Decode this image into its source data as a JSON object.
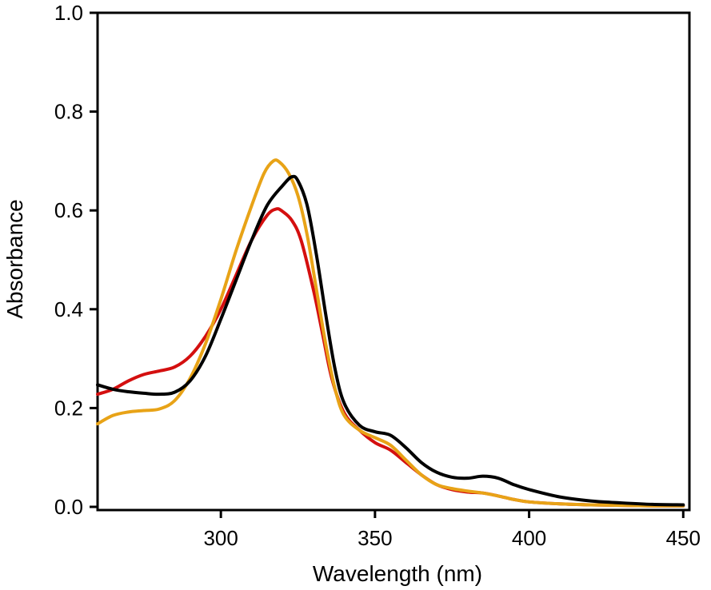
{
  "chart_data": {
    "type": "line",
    "title": "",
    "xlabel": "Wavelength (nm)",
    "ylabel": "Absorbance",
    "xlim": [
      260,
      452
    ],
    "ylim": [
      0,
      1.0
    ],
    "x_ticks": [
      300,
      350,
      400,
      450
    ],
    "x_tick_labels": [
      "300",
      "350",
      "400",
      "450"
    ],
    "y_ticks": [
      0.0,
      0.2,
      0.4,
      0.6,
      0.8,
      1.0
    ],
    "y_tick_labels": [
      "0.0",
      "0.2",
      "0.4",
      "0.6",
      "0.8",
      "1.0"
    ],
    "grid": false,
    "legend": "none",
    "series": [
      {
        "color": "#d40f0f",
        "points": [
          [
            260,
            0.228
          ],
          [
            265,
            0.238
          ],
          [
            270,
            0.255
          ],
          [
            275,
            0.268
          ],
          [
            280,
            0.275
          ],
          [
            285,
            0.283
          ],
          [
            290,
            0.305
          ],
          [
            295,
            0.345
          ],
          [
            300,
            0.4
          ],
          [
            305,
            0.47
          ],
          [
            310,
            0.54
          ],
          [
            315,
            0.59
          ],
          [
            318,
            0.603
          ],
          [
            320,
            0.598
          ],
          [
            323,
            0.58
          ],
          [
            326,
            0.54
          ],
          [
            330,
            0.44
          ],
          [
            333,
            0.35
          ],
          [
            336,
            0.26
          ],
          [
            340,
            0.19
          ],
          [
            345,
            0.155
          ],
          [
            350,
            0.13
          ],
          [
            355,
            0.115
          ],
          [
            360,
            0.09
          ],
          [
            365,
            0.065
          ],
          [
            370,
            0.045
          ],
          [
            375,
            0.035
          ],
          [
            380,
            0.03
          ],
          [
            385,
            0.028
          ],
          [
            390,
            0.022
          ],
          [
            395,
            0.015
          ],
          [
            400,
            0.01
          ],
          [
            410,
            0.006
          ],
          [
            420,
            0.004
          ],
          [
            430,
            0.003
          ],
          [
            440,
            0.002
          ],
          [
            450,
            0.002
          ]
        ]
      },
      {
        "color": "#e8a317",
        "points": [
          [
            260,
            0.168
          ],
          [
            265,
            0.185
          ],
          [
            270,
            0.192
          ],
          [
            275,
            0.195
          ],
          [
            280,
            0.198
          ],
          [
            285,
            0.215
          ],
          [
            290,
            0.26
          ],
          [
            295,
            0.33
          ],
          [
            300,
            0.42
          ],
          [
            305,
            0.52
          ],
          [
            310,
            0.61
          ],
          [
            314,
            0.675
          ],
          [
            317,
            0.7
          ],
          [
            319,
            0.698
          ],
          [
            322,
            0.675
          ],
          [
            325,
            0.63
          ],
          [
            328,
            0.55
          ],
          [
            331,
            0.44
          ],
          [
            334,
            0.33
          ],
          [
            337,
            0.24
          ],
          [
            340,
            0.185
          ],
          [
            345,
            0.155
          ],
          [
            350,
            0.14
          ],
          [
            355,
            0.125
          ],
          [
            360,
            0.095
          ],
          [
            365,
            0.065
          ],
          [
            370,
            0.045
          ],
          [
            375,
            0.037
          ],
          [
            380,
            0.032
          ],
          [
            385,
            0.028
          ],
          [
            390,
            0.022
          ],
          [
            395,
            0.015
          ],
          [
            400,
            0.01
          ],
          [
            410,
            0.006
          ],
          [
            420,
            0.004
          ],
          [
            430,
            0.003
          ],
          [
            440,
            0.002
          ],
          [
            450,
            0.002
          ]
        ]
      },
      {
        "color": "#000000",
        "points": [
          [
            260,
            0.247
          ],
          [
            265,
            0.238
          ],
          [
            270,
            0.233
          ],
          [
            275,
            0.23
          ],
          [
            280,
            0.228
          ],
          [
            285,
            0.232
          ],
          [
            290,
            0.255
          ],
          [
            295,
            0.305
          ],
          [
            300,
            0.38
          ],
          [
            305,
            0.46
          ],
          [
            310,
            0.54
          ],
          [
            315,
            0.61
          ],
          [
            320,
            0.65
          ],
          [
            323,
            0.668
          ],
          [
            325,
            0.66
          ],
          [
            328,
            0.61
          ],
          [
            331,
            0.51
          ],
          [
            334,
            0.39
          ],
          [
            337,
            0.28
          ],
          [
            340,
            0.21
          ],
          [
            345,
            0.165
          ],
          [
            350,
            0.152
          ],
          [
            355,
            0.145
          ],
          [
            360,
            0.12
          ],
          [
            365,
            0.09
          ],
          [
            370,
            0.07
          ],
          [
            375,
            0.06
          ],
          [
            380,
            0.058
          ],
          [
            385,
            0.062
          ],
          [
            390,
            0.058
          ],
          [
            395,
            0.045
          ],
          [
            400,
            0.035
          ],
          [
            410,
            0.02
          ],
          [
            420,
            0.012
          ],
          [
            430,
            0.008
          ],
          [
            440,
            0.005
          ],
          [
            450,
            0.004
          ]
        ]
      }
    ]
  }
}
